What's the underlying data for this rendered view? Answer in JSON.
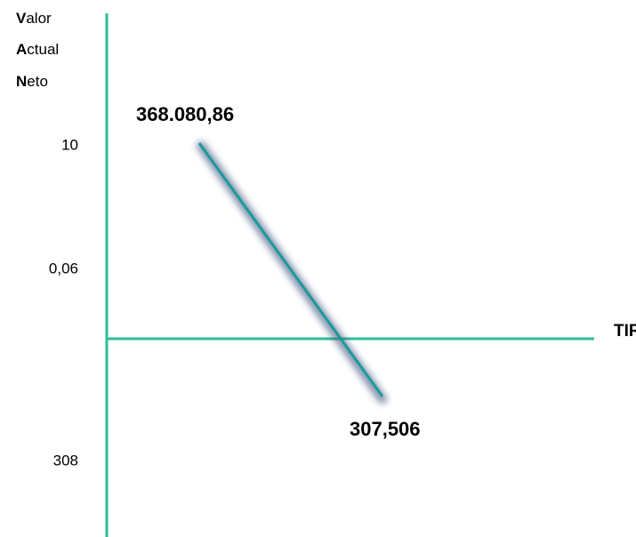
{
  "y_axis_title": [
    {
      "initial": "V",
      "rest": "alor"
    },
    {
      "initial": "A",
      "rest": "ctual"
    },
    {
      "initial": "N",
      "rest": "eto"
    }
  ],
  "y_labels": [
    "10",
    "0,06",
    "308"
  ],
  "x_axis_title": "TIR",
  "line_labels": {
    "start": "368.080,86",
    "end": "307,506"
  }
}
